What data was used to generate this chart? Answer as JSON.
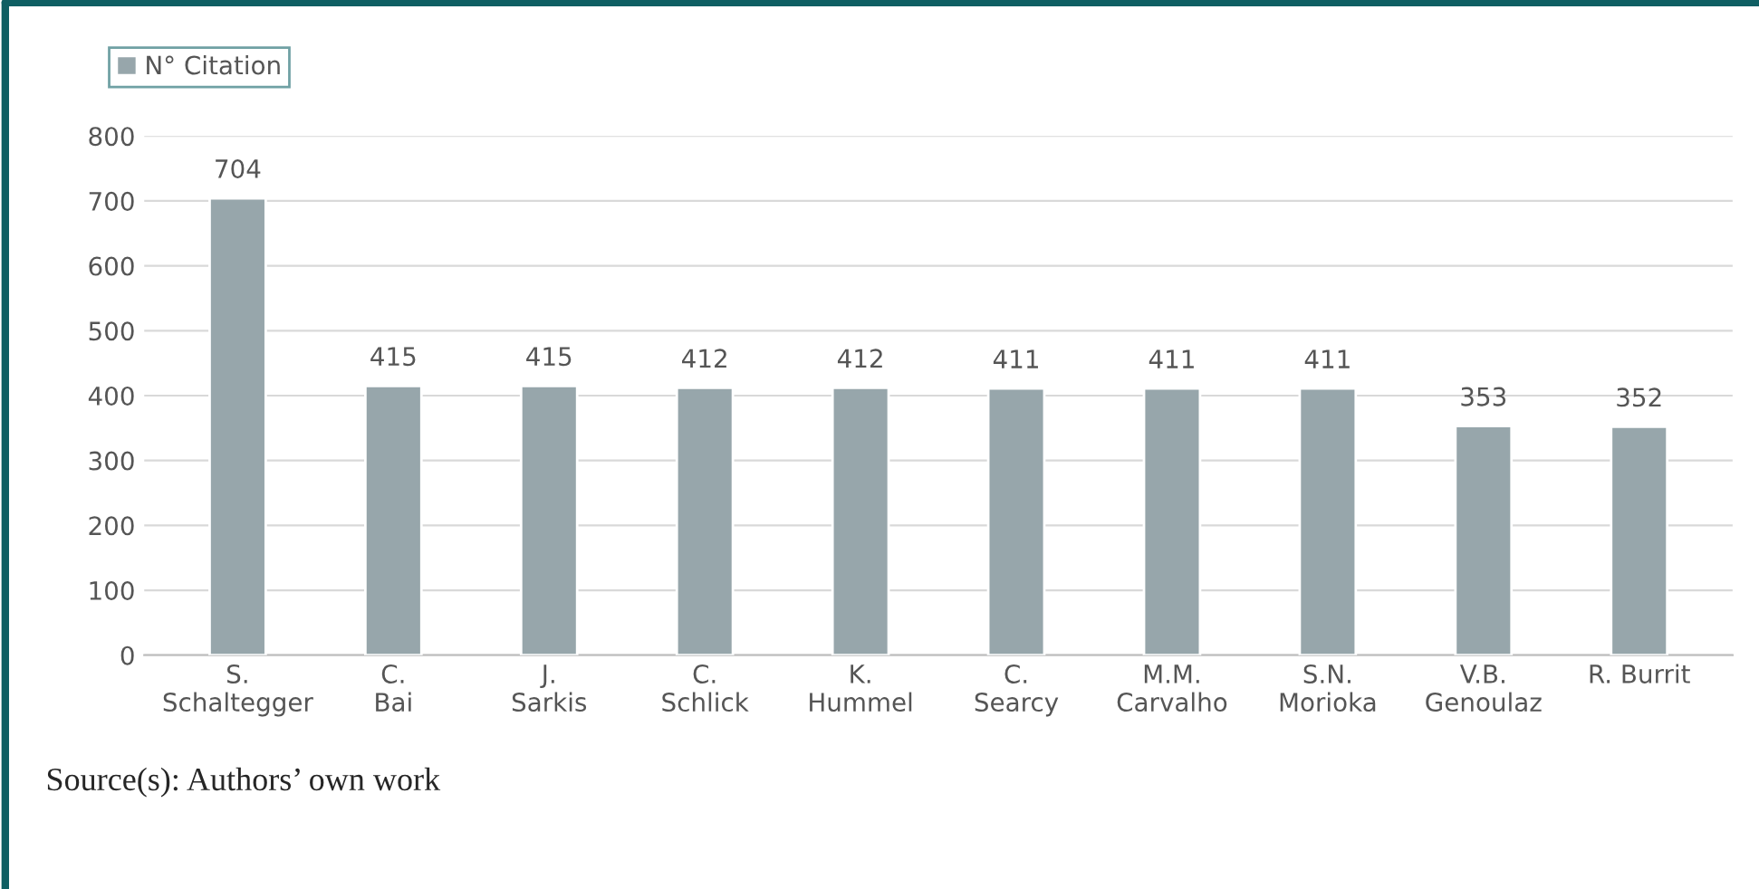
{
  "chart_data": {
    "type": "bar",
    "categories": [
      "S.\nSchaltegger",
      "C.\nBai",
      "J.\nSarkis",
      "C.\nSchlick",
      "K.\nHummel",
      "C.\nSearcy",
      "M.M.\nCarvalho",
      "S.N.\nMorioka",
      "V.B.\nGenoulaz",
      "R. Burrit"
    ],
    "series": [
      {
        "name": "N° Citation",
        "color": "#97a6ab",
        "values": [
          704,
          415,
          415,
          412,
          412,
          411,
          411,
          411,
          353,
          352
        ]
      }
    ],
    "ylim": [
      0,
      800
    ],
    "yticks": [
      0,
      100,
      200,
      300,
      400,
      500,
      600,
      700,
      800
    ],
    "grid": "y",
    "legend": "top left",
    "data_labels": true,
    "annotations": [
      "Source(s): Authors’ own work"
    ]
  }
}
